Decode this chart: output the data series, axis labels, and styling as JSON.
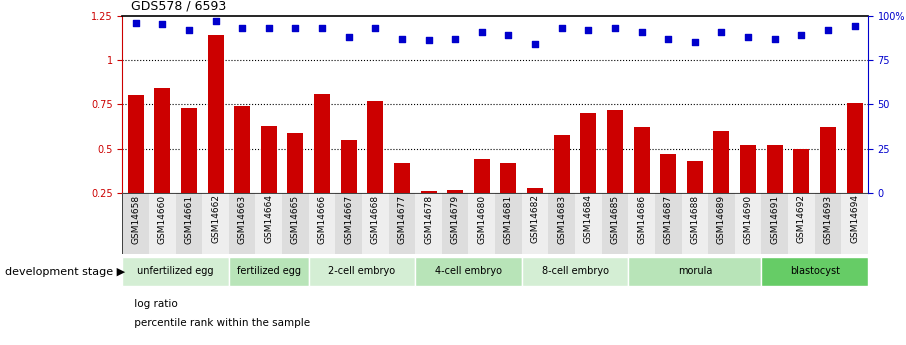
{
  "title": "GDS578 / 6593",
  "samples": [
    "GSM14658",
    "GSM14660",
    "GSM14661",
    "GSM14662",
    "GSM14663",
    "GSM14664",
    "GSM14665",
    "GSM14666",
    "GSM14667",
    "GSM14668",
    "GSM14677",
    "GSM14678",
    "GSM14679",
    "GSM14680",
    "GSM14681",
    "GSM14682",
    "GSM14683",
    "GSM14684",
    "GSM14685",
    "GSM14686",
    "GSM14687",
    "GSM14688",
    "GSM14689",
    "GSM14690",
    "GSM14691",
    "GSM14692",
    "GSM14693",
    "GSM14694"
  ],
  "log_ratio": [
    0.8,
    0.84,
    0.73,
    1.14,
    0.74,
    0.63,
    0.59,
    0.81,
    0.55,
    0.77,
    0.42,
    0.26,
    0.27,
    0.44,
    0.42,
    0.28,
    0.58,
    0.7,
    0.72,
    0.62,
    0.47,
    0.43,
    0.6,
    0.52,
    0.52,
    0.5,
    0.62,
    0.76
  ],
  "percentile": [
    96,
    95,
    92,
    97,
    93,
    93,
    93,
    93,
    88,
    93,
    87,
    86,
    87,
    91,
    89,
    84,
    93,
    92,
    93,
    91,
    87,
    85,
    91,
    88,
    87,
    89,
    92,
    94
  ],
  "bar_color": "#cc0000",
  "dot_color": "#0000cc",
  "ylim_left": [
    0.25,
    1.25
  ],
  "ylim_right": [
    0,
    100
  ],
  "yticks_left": [
    0.25,
    0.5,
    0.75,
    1.0,
    1.25
  ],
  "yticks_right": [
    0,
    25,
    50,
    75,
    100
  ],
  "ytick_labels_left": [
    "0.25",
    "0.5",
    "0.75",
    "1",
    "1.25"
  ],
  "ytick_labels_right": [
    "0",
    "25",
    "50",
    "75",
    "100%"
  ],
  "hlines": [
    0.5,
    0.75,
    1.0
  ],
  "stages": [
    {
      "label": "unfertilized egg",
      "start": 0,
      "end": 4,
      "color": "#d4eed4"
    },
    {
      "label": "fertilized egg",
      "start": 4,
      "end": 7,
      "color": "#b8e4b8"
    },
    {
      "label": "2-cell embryo",
      "start": 7,
      "end": 11,
      "color": "#d4eed4"
    },
    {
      "label": "4-cell embryo",
      "start": 11,
      "end": 15,
      "color": "#b8e4b8"
    },
    {
      "label": "8-cell embryo",
      "start": 15,
      "end": 19,
      "color": "#d4eed4"
    },
    {
      "label": "morula",
      "start": 19,
      "end": 24,
      "color": "#b8e4b8"
    },
    {
      "label": "blastocyst",
      "start": 24,
      "end": 28,
      "color": "#66cc66"
    }
  ],
  "dev_stage_label": "development stage",
  "arrow_char": "▶",
  "legend_bar": "log ratio",
  "legend_dot": "percentile rank within the sample",
  "title_fontsize": 9,
  "tick_fontsize": 7,
  "xtick_fontsize": 6.5,
  "stage_fontsize": 7,
  "legend_fontsize": 7.5
}
